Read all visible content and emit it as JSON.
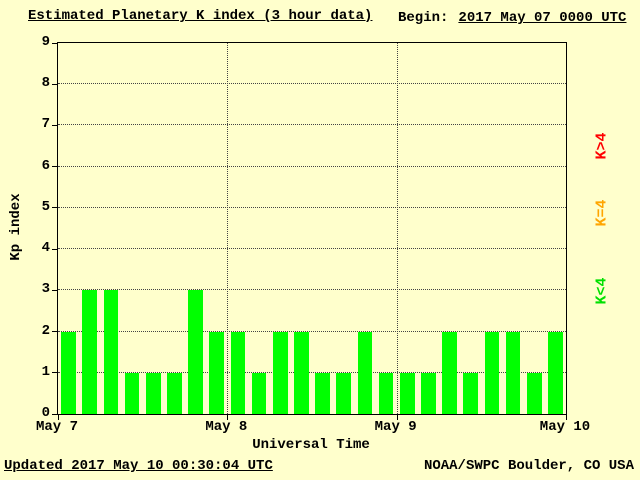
{
  "header": {
    "title": "Estimated Planetary K index (3 hour data)",
    "begin_label": "Begin:",
    "begin_value": "2017 May 07 0000 UTC"
  },
  "footer": {
    "updated": "Updated 2017 May 10 00:30:04 UTC",
    "source": "NOAA/SWPC Boulder, CO USA"
  },
  "legend": [
    {
      "label": "K>4",
      "color": "#ff0000"
    },
    {
      "label": "K=4",
      "color": "#ffa500"
    },
    {
      "label": "K<4",
      "color": "#00e000"
    }
  ],
  "chart_data": {
    "type": "bar",
    "title": "Estimated Planetary K index (3 hour data)",
    "xlabel": "Universal Time",
    "ylabel": "Kp index",
    "ylim": [
      0,
      9
    ],
    "yticks": [
      0,
      1,
      2,
      3,
      4,
      5,
      6,
      7,
      8,
      9
    ],
    "xticks": [
      "May 7",
      "May 8",
      "May 9",
      "May 10"
    ],
    "interval_hours": 3,
    "grid": "dotted",
    "bar_color_rules": {
      "lt4": "#00ff00",
      "eq4": "#ffa500",
      "gt4": "#ff0000"
    },
    "values": [
      2,
      3,
      3,
      1,
      1,
      1,
      3,
      2,
      2,
      1,
      2,
      2,
      1,
      1,
      2,
      1,
      1,
      1,
      2,
      1,
      2,
      2,
      1,
      2
    ]
  }
}
